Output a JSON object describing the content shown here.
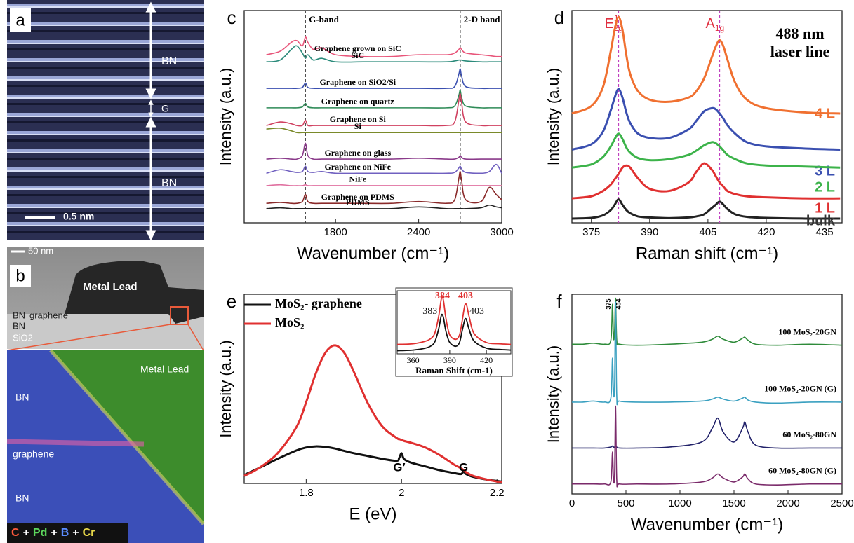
{
  "panel_a": {
    "label": "a",
    "layers": [
      "BN",
      "G",
      "BN"
    ],
    "scale_bar": "0.5 nm"
  },
  "panel_b": {
    "label": "b",
    "scale_bar": "50 nm",
    "tem_labels": {
      "metal": "Metal Lead",
      "bn_top": "BN",
      "graphene": "graphene",
      "bn_bottom": "BN",
      "substrate": "SiO2"
    },
    "map_labels": {
      "metal": "Metal Lead",
      "bn_top": "BN",
      "graphene": "graphene",
      "bn_bottom": "BN"
    },
    "elements": [
      "C",
      "Pd",
      "B",
      "Cr"
    ],
    "element_colors": [
      "#ff5a3c",
      "#5cd65c",
      "#5a8cff",
      "#e8d84a"
    ],
    "separator": "+"
  },
  "chart_data": [
    {
      "type": "line",
      "panel_label": "c",
      "xlabel": "Wavenumber (cm⁻¹)",
      "ylabel": "Intensity (a.u.)",
      "xlim": [
        1140,
        3000
      ],
      "ylim": [
        0,
        12
      ],
      "xticks": [
        1800,
        2400,
        3000
      ],
      "reference_lines": [
        1582,
        2700
      ],
      "reference_labels": [
        "G-band",
        "2-D band"
      ],
      "x": [
        1300,
        1400,
        1480,
        1520,
        1560,
        1582,
        1600,
        1640,
        1700,
        1800,
        2000,
        2200,
        2400,
        2600,
        2660,
        2690,
        2700,
        2710,
        2740,
        2850,
        2910,
        2960,
        3000
      ],
      "series": [
        {
          "name": "Graphene grown on SiC",
          "color": "#e8557a",
          "values": [
            9.5,
            9.7,
            10.2,
            10.3,
            10.0,
            10.5,
            10.2,
            9.8,
            9.9,
            9.5,
            9.4,
            9.4,
            9.5,
            9.5,
            9.6,
            9.8,
            9.9,
            9.8,
            9.6,
            9.5,
            9.45,
            9.4,
            9.4
          ]
        },
        {
          "name": "SiC",
          "color": "#2a8a7a",
          "values": [
            9.1,
            9.2,
            9.8,
            10.0,
            9.6,
            9.3,
            9.5,
            9.2,
            9.3,
            9.1,
            9.1,
            9.1,
            9.1,
            9.1,
            9.15,
            9.2,
            9.2,
            9.2,
            9.15,
            9.1,
            9.1,
            9.1,
            9.1
          ]
        },
        {
          "name": "Graphene on SiO2/Si",
          "color": "#3a4fb0",
          "values": [
            7.6,
            7.6,
            7.6,
            7.6,
            7.65,
            7.9,
            7.65,
            7.6,
            7.6,
            7.6,
            7.6,
            7.6,
            7.6,
            7.6,
            7.7,
            8.4,
            8.7,
            8.3,
            7.7,
            7.6,
            7.6,
            7.6,
            7.6
          ]
        },
        {
          "name": "Graphene on quartz",
          "color": "#2e8b57",
          "values": [
            6.5,
            6.5,
            6.5,
            6.5,
            6.55,
            6.75,
            6.55,
            6.5,
            6.5,
            6.5,
            6.5,
            6.5,
            6.5,
            6.5,
            6.6,
            7.2,
            7.5,
            7.1,
            6.6,
            6.5,
            6.5,
            6.5,
            6.5
          ]
        },
        {
          "name": "Graphene on Si",
          "color": "#d04060",
          "values": [
            5.5,
            5.7,
            5.6,
            5.5,
            5.5,
            5.8,
            5.5,
            5.5,
            5.5,
            5.5,
            5.5,
            5.5,
            5.5,
            5.5,
            5.7,
            6.9,
            7.3,
            6.8,
            5.7,
            5.5,
            5.5,
            5.5,
            5.5
          ]
        },
        {
          "name": "Si",
          "color": "#7a8a2a",
          "values": [
            5.3,
            5.35,
            5.2,
            5.1,
            5.1,
            5.1,
            5.1,
            5.1,
            5.1,
            5.1,
            5.1,
            5.1,
            5.1,
            5.1,
            5.1,
            5.1,
            5.1,
            5.1,
            5.1,
            5.1,
            5.1,
            5.1,
            5.1
          ]
        },
        {
          "name": "Graphene on glass",
          "color": "#8a3a8a",
          "values": [
            3.6,
            3.65,
            3.6,
            3.6,
            3.8,
            4.5,
            3.8,
            3.6,
            3.6,
            3.6,
            3.6,
            3.6,
            3.65,
            3.6,
            3.6,
            3.7,
            3.8,
            3.7,
            3.6,
            3.6,
            3.6,
            3.6,
            3.6
          ]
        },
        {
          "name": "Graphene on NiFe",
          "color": "#7060c0",
          "values": [
            2.8,
            3.0,
            2.9,
            2.85,
            2.9,
            3.2,
            2.9,
            2.85,
            2.9,
            2.8,
            2.8,
            2.8,
            2.8,
            2.8,
            2.85,
            3.1,
            3.2,
            3.05,
            2.85,
            2.8,
            2.9,
            3.3,
            2.8
          ]
        },
        {
          "name": "NiFe",
          "color": "#e070a0",
          "values": [
            2.1,
            2.15,
            2.1,
            2.1,
            2.1,
            2.15,
            2.1,
            2.1,
            2.1,
            2.1,
            2.1,
            2.1,
            2.1,
            2.1,
            2.1,
            2.1,
            2.1,
            2.1,
            2.1,
            2.1,
            2.1,
            2.1,
            2.1
          ]
        },
        {
          "name": "Graphene on PDMS",
          "color": "#8a2a2a",
          "values": [
            1.1,
            1.15,
            1.1,
            1.1,
            1.2,
            1.6,
            1.2,
            1.1,
            1.1,
            1.1,
            1.1,
            1.1,
            1.2,
            1.1,
            1.3,
            2.5,
            2.9,
            2.4,
            1.3,
            1.2,
            2.0,
            1.6,
            1.3
          ]
        },
        {
          "name": "PDMS",
          "color": "#222222",
          "values": [
            0.8,
            0.85,
            0.8,
            0.8,
            0.8,
            0.8,
            0.8,
            0.8,
            0.8,
            0.8,
            0.8,
            0.8,
            0.9,
            0.8,
            0.8,
            0.8,
            0.8,
            0.8,
            0.8,
            0.85,
            1.0,
            0.9,
            0.85
          ]
        }
      ]
    },
    {
      "type": "line",
      "panel_label": "d",
      "xlabel": "Raman shift (cm⁻¹)",
      "ylabel": "Intensity (a.u.)",
      "xlim": [
        370,
        439.5
      ],
      "ylim": [
        0,
        10
      ],
      "xticks": [
        375,
        390,
        405,
        420,
        435
      ],
      "reference_lines": [
        382,
        408
      ],
      "peak_names": [
        {
          "main": "E",
          "sup": "1",
          "sub": "2g"
        },
        {
          "main": "A",
          "sub": "1g"
        }
      ],
      "annotation": [
        "488 nm",
        "laser line"
      ],
      "x": [
        370,
        375,
        378,
        380,
        381,
        382,
        383,
        384,
        385,
        387,
        390,
        395,
        400,
        402,
        404,
        406,
        407,
        408,
        409,
        410,
        412,
        415,
        420,
        430,
        439
      ],
      "series": [
        {
          "name": "4 L",
          "color": "#f07030",
          "values": [
            5.15,
            5.5,
            6.4,
            8.1,
            9.1,
            9.7,
            9.1,
            7.9,
            7.0,
            6.2,
            5.8,
            5.7,
            5.9,
            6.2,
            6.8,
            7.8,
            8.3,
            8.6,
            8.3,
            7.7,
            6.6,
            5.8,
            5.4,
            5.2,
            5.15
          ]
        },
        {
          "name": "3 L",
          "color": "#3a4fb0",
          "values": [
            3.45,
            3.7,
            4.3,
            5.3,
            5.9,
            6.3,
            5.9,
            5.2,
            4.7,
            4.2,
            4.0,
            4.0,
            4.4,
            4.8,
            5.25,
            5.4,
            5.35,
            5.15,
            4.9,
            4.6,
            4.2,
            3.8,
            3.6,
            3.5,
            3.45
          ]
        },
        {
          "name": "2 L",
          "color": "#3cb34a",
          "values": [
            2.6,
            2.75,
            3.1,
            3.6,
            3.95,
            4.2,
            3.95,
            3.55,
            3.3,
            3.05,
            2.95,
            3.0,
            3.2,
            3.4,
            3.65,
            3.8,
            3.75,
            3.6,
            3.4,
            3.2,
            3.0,
            2.8,
            2.7,
            2.65,
            2.6
          ]
        },
        {
          "name": "1 L",
          "color": "#e03030",
          "values": [
            1.15,
            1.25,
            1.5,
            1.8,
            2.05,
            2.3,
            2.6,
            2.7,
            2.6,
            2.1,
            1.6,
            1.5,
            1.9,
            2.4,
            2.8,
            2.5,
            2.2,
            1.9,
            1.7,
            1.5,
            1.35,
            1.25,
            1.2,
            1.15,
            1.15
          ]
        },
        {
          "name": "bulk",
          "color": "#222222",
          "values": [
            0.2,
            0.23,
            0.35,
            0.6,
            0.85,
            1.1,
            0.85,
            0.6,
            0.45,
            0.3,
            0.25,
            0.22,
            0.25,
            0.3,
            0.4,
            0.7,
            0.85,
            1.0,
            0.85,
            0.65,
            0.4,
            0.28,
            0.23,
            0.2,
            0.2
          ]
        }
      ]
    },
    {
      "type": "line",
      "panel_label": "e",
      "xlabel": "E (eV)",
      "ylabel": "Intensity (a.u.)",
      "xlim": [
        1.67,
        2.21
      ],
      "ylim": [
        0,
        10
      ],
      "xticks": [
        1.8,
        2.0,
        2.2
      ],
      "peak_annotations": [
        {
          "value": 1.995,
          "label": "G′"
        },
        {
          "value": 2.13,
          "label": "G"
        }
      ],
      "x": [
        1.67,
        1.7,
        1.74,
        1.78,
        1.8,
        1.82,
        1.84,
        1.86,
        1.88,
        1.9,
        1.93,
        1.96,
        1.99,
        1.995,
        2.0,
        2.005,
        2.02,
        2.05,
        2.08,
        2.11,
        2.125,
        2.13,
        2.135,
        2.15,
        2.18,
        2.21
      ],
      "series": [
        {
          "name": "MoS₂- graphene",
          "color": "#111111",
          "values": [
            0.45,
            0.8,
            1.3,
            1.75,
            1.9,
            1.96,
            1.93,
            1.85,
            1.72,
            1.6,
            1.45,
            1.3,
            1.2,
            1.35,
            1.6,
            1.3,
            1.1,
            0.9,
            0.7,
            0.55,
            0.5,
            0.65,
            0.5,
            0.35,
            0.2,
            0.1
          ]
        },
        {
          "name": "MoS₂",
          "color": "#e03030",
          "values": [
            0.4,
            0.8,
            1.6,
            3.0,
            4.3,
            5.8,
            6.9,
            7.3,
            6.9,
            5.9,
            4.2,
            3.0,
            2.4,
            2.35,
            2.3,
            2.25,
            2.15,
            1.9,
            1.5,
            1.0,
            0.8,
            0.7,
            0.6,
            0.4,
            0.2,
            0.05
          ]
        }
      ]
    },
    {
      "type": "line",
      "xlabel": "Raman Shift (cm-1)",
      "xlim": [
        347,
        440
      ],
      "ylim": [
        0,
        10
      ],
      "xticks": [
        360,
        390,
        420
      ],
      "x": [
        347,
        360,
        370,
        375,
        378,
        381,
        383,
        384,
        385,
        387,
        390,
        395,
        398,
        400,
        402,
        403,
        404,
        406,
        410,
        420,
        430,
        440
      ],
      "series": [
        {
          "color": "#e03030",
          "peaks": [
            384,
            403
          ],
          "values": [
            1.5,
            1.6,
            2.0,
            2.5,
            3.4,
            6,
            8.6,
            9.0,
            8.3,
            5.5,
            3.0,
            2.3,
            3.0,
            5.0,
            7.4,
            7.9,
            7.6,
            5.8,
            3.2,
            1.8,
            1.6,
            1.5
          ]
        },
        {
          "color": "#111111",
          "peaks": [
            383,
            403
          ],
          "values": [
            0.5,
            0.6,
            0.9,
            1.3,
            2,
            4,
            6.0,
            6.2,
            5.6,
            3.5,
            1.8,
            1.2,
            1.8,
            3.5,
            5.2,
            5.6,
            5.2,
            3.8,
            2.0,
            0.9,
            0.7,
            0.6
          ]
        }
      ]
    },
    {
      "type": "line",
      "panel_label": "f",
      "xlabel": "Wavenumber (cm⁻¹)",
      "ylabel": "Intensity (a.u.)",
      "xlim": [
        0,
        2500
      ],
      "ylim": [
        0,
        10
      ],
      "xticks": [
        0,
        500,
        1000,
        1500,
        2000,
        2500
      ],
      "peak_labels": [
        375,
        404
      ],
      "x": [
        0,
        100,
        200,
        300,
        360,
        375,
        385,
        395,
        404,
        415,
        440,
        600,
        900,
        1200,
        1300,
        1350,
        1400,
        1500,
        1580,
        1600,
        1630,
        1700,
        1900,
        2200,
        2500
      ],
      "series": [
        {
          "name": "100 MoS₂-20GN",
          "color": "#2e8b3a",
          "values": [
            7.5,
            7.5,
            7.55,
            7.5,
            7.7,
            9.5,
            7.8,
            8.2,
            9.8,
            7.7,
            7.5,
            7.45,
            7.5,
            7.6,
            7.75,
            7.9,
            7.75,
            7.6,
            7.8,
            7.85,
            7.7,
            7.5,
            7.45,
            7.5,
            7.45
          ]
        },
        {
          "name": "100 MoS₂-20GN (G)",
          "color": "#3aa0c0",
          "values": [
            4.6,
            4.6,
            4.65,
            4.6,
            4.8,
            6.8,
            5.0,
            5.5,
            9.6,
            4.9,
            4.65,
            4.6,
            4.6,
            4.65,
            4.75,
            4.85,
            4.75,
            4.65,
            4.8,
            4.85,
            4.7,
            4.6,
            4.55,
            4.6,
            4.6
          ]
        },
        {
          "name": "60 MoS₂-80GN",
          "color": "#22226a",
          "values": [
            2.3,
            2.3,
            2.3,
            2.3,
            2.35,
            2.4,
            2.35,
            2.35,
            2.4,
            2.35,
            2.3,
            2.3,
            2.35,
            2.6,
            3.3,
            3.8,
            3.1,
            2.6,
            3.3,
            3.6,
            3.1,
            2.45,
            2.3,
            2.3,
            2.3
          ]
        },
        {
          "name": "60 MoS₂-80GN (G)",
          "color": "#7a2a6a",
          "values": [
            0.5,
            0.5,
            0.5,
            0.5,
            0.6,
            2.1,
            0.7,
            1.0,
            4.4,
            0.7,
            0.5,
            0.5,
            0.5,
            0.6,
            0.8,
            1.0,
            0.8,
            0.6,
            0.85,
            1.0,
            0.75,
            0.5,
            0.45,
            0.5,
            0.5
          ]
        }
      ]
    }
  ]
}
